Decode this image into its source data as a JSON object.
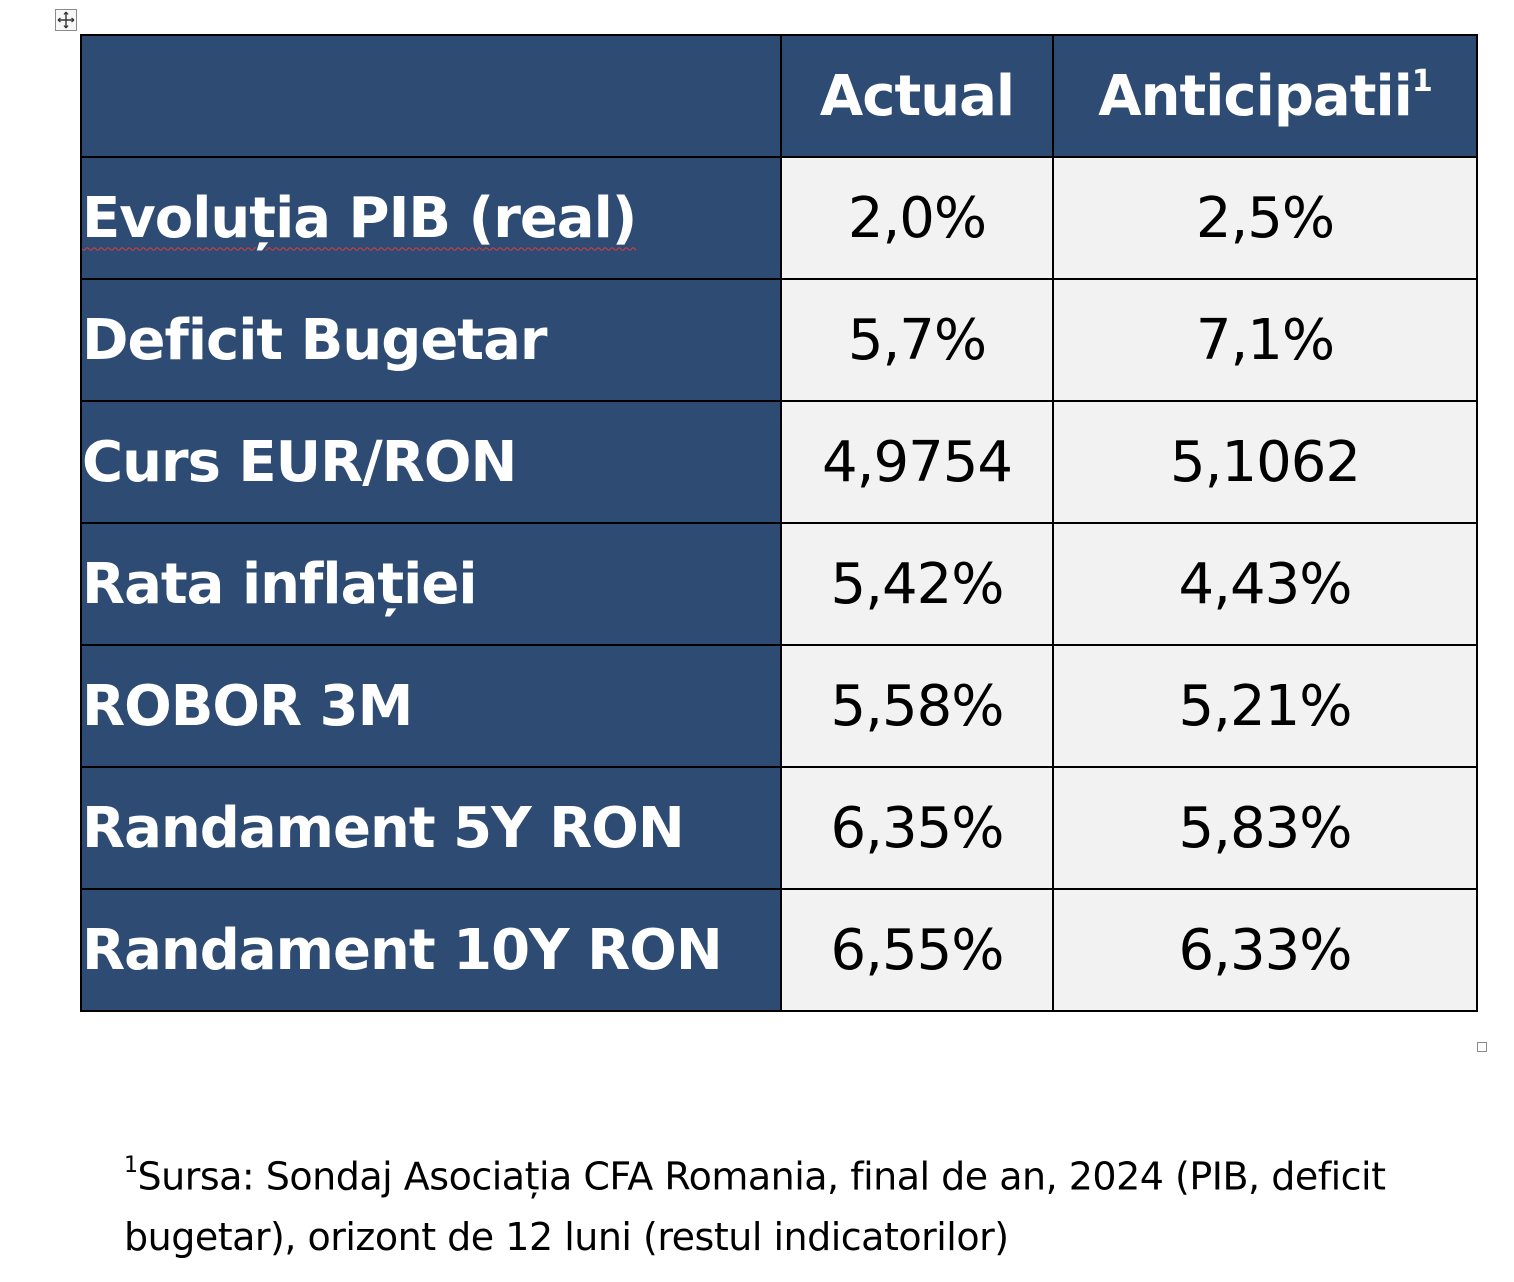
{
  "table": {
    "header": {
      "col_actual": "Actual",
      "col_anticipatii": "Anticipatii",
      "anticipatii_note_mark": "1"
    },
    "rows": [
      {
        "label": "Evoluția PIB (real)",
        "actual": "2,0%",
        "anticipatii": "2,5%"
      },
      {
        "label": "Deficit Bugetar",
        "actual": "5,7%",
        "anticipatii": "7,1%"
      },
      {
        "label": "Curs EUR/RON",
        "actual": "4,9754",
        "anticipatii": "5,1062"
      },
      {
        "label": "Rata inflației",
        "actual": "5,42%",
        "anticipatii": "4,43%"
      },
      {
        "label": "ROBOR 3M",
        "actual": "5,58%",
        "anticipatii": "5,21%"
      },
      {
        "label": "Randament 5Y RON",
        "actual": "6,35%",
        "anticipatii": "5,83%"
      },
      {
        "label": "Randament 10Y RON",
        "actual": "6,55%",
        "anticipatii": "6,33%"
      }
    ]
  },
  "footnote": {
    "mark": "1",
    "text": "Sursa: Sondaj Asociația CFA Romania, final de an, 2024 (PIB, deficit bugetar), orizont de 12 luni (restul indicatorilor)"
  },
  "colors": {
    "header_fill": "#2d4b73",
    "value_fill": "#f2f2f2",
    "spellcheck_underline": "#e23b3b"
  }
}
